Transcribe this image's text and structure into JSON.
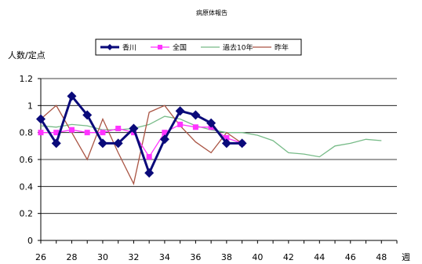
{
  "chart_data": {
    "type": "line",
    "title": "病原体報告",
    "ylabel": "人数/定点",
    "xlabel_suffix": "週",
    "ylim": [
      0,
      1.2
    ],
    "yticks": [
      0,
      0.2,
      0.4,
      0.6,
      0.8,
      1,
      1.2
    ],
    "xlim": [
      26,
      49
    ],
    "xticks": [
      26,
      28,
      30,
      32,
      34,
      36,
      38,
      40,
      42,
      44,
      46,
      48
    ],
    "grid": "horizontal",
    "legend_position": "top",
    "series": [
      {
        "name": "香川",
        "color": "#0a0a7a",
        "marker": "diamond",
        "x": [
          26,
          27,
          28,
          29,
          30,
          31,
          32,
          33,
          34,
          35,
          36,
          37,
          38,
          39
        ],
        "values": [
          0.9,
          0.72,
          1.07,
          0.93,
          0.72,
          0.72,
          0.83,
          0.5,
          0.75,
          0.96,
          0.93,
          0.87,
          0.72,
          0.72
        ]
      },
      {
        "name": "全国",
        "color": "#ff33ff",
        "marker": "square",
        "x": [
          26,
          27,
          28,
          29,
          30,
          31,
          32,
          33,
          34,
          35,
          36,
          37,
          38,
          39
        ],
        "values": [
          0.8,
          0.8,
          0.82,
          0.8,
          0.8,
          0.83,
          0.8,
          0.62,
          0.8,
          0.86,
          0.84,
          0.84,
          0.76,
          0.72
        ]
      },
      {
        "name": "過去10年",
        "color": "#77bb88",
        "marker": "none",
        "x": [
          26,
          27,
          28,
          29,
          30,
          31,
          32,
          33,
          34,
          35,
          36,
          37,
          38,
          39,
          40,
          41,
          42,
          43,
          44,
          45,
          46,
          47,
          48
        ],
        "values": [
          0.85,
          0.84,
          0.86,
          0.85,
          0.82,
          0.82,
          0.83,
          0.86,
          0.92,
          0.9,
          0.85,
          0.82,
          0.8,
          0.8,
          0.78,
          0.74,
          0.65,
          0.64,
          0.62,
          0.7,
          0.72,
          0.75,
          0.74
        ]
      },
      {
        "name": "昨年",
        "color": "#aa5544",
        "marker": "none",
        "x": [
          26,
          27,
          28,
          29,
          30,
          31,
          32,
          33,
          34,
          35,
          36,
          37,
          38,
          39
        ],
        "values": [
          0.9,
          1.0,
          0.8,
          0.6,
          0.9,
          0.65,
          0.42,
          0.95,
          1.0,
          0.85,
          0.73,
          0.65,
          0.8,
          0.72
        ]
      }
    ]
  }
}
